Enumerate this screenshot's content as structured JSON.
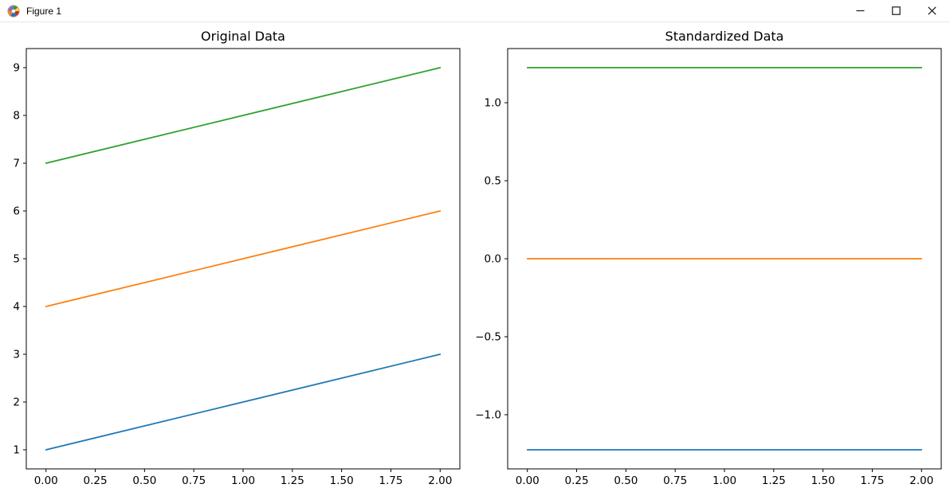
{
  "window": {
    "title": "Figure 1",
    "icon": "matplotlib-logo",
    "controls": [
      {
        "name": "minimize",
        "icon": "minimize-icon"
      },
      {
        "name": "maximize",
        "icon": "maximize-icon"
      },
      {
        "name": "close",
        "icon": "close-icon"
      }
    ]
  },
  "chart_data": [
    {
      "type": "line",
      "title": "Original Data",
      "x": [
        0,
        1,
        2
      ],
      "series": [
        {
          "name": "blue-line",
          "color": "#1f77b4",
          "values": [
            1,
            2,
            3
          ]
        },
        {
          "name": "orange-line",
          "color": "#ff7f0e",
          "values": [
            4,
            5,
            6
          ]
        },
        {
          "name": "green-line",
          "color": "#2ca02c",
          "values": [
            7,
            8,
            9
          ]
        }
      ],
      "xlim": [
        -0.1,
        2.1
      ],
      "ylim": [
        0.6,
        9.4
      ],
      "xticks": {
        "values": [
          0,
          0.25,
          0.5,
          0.75,
          1.0,
          1.25,
          1.5,
          1.75,
          2.0
        ],
        "labels": [
          "0.00",
          "0.25",
          "0.50",
          "0.75",
          "1.00",
          "1.25",
          "1.50",
          "1.75",
          "2.00"
        ]
      },
      "yticks": {
        "values": [
          1,
          2,
          3,
          4,
          5,
          6,
          7,
          8,
          9
        ],
        "labels": [
          "1",
          "2",
          "3",
          "4",
          "5",
          "6",
          "7",
          "8",
          "9"
        ]
      },
      "grid": false,
      "legend": null,
      "frame_color": "#000000",
      "background": "#ffffff"
    },
    {
      "type": "line",
      "title": "Standardized Data",
      "x": [
        0,
        1,
        2
      ],
      "series": [
        {
          "name": "blue-line",
          "color": "#1f77b4",
          "values": [
            -1.2247,
            -1.2247,
            -1.2247
          ]
        },
        {
          "name": "orange-line",
          "color": "#ff7f0e",
          "values": [
            0,
            0,
            0
          ]
        },
        {
          "name": "green-line",
          "color": "#2ca02c",
          "values": [
            1.2247,
            1.2247,
            1.2247
          ]
        }
      ],
      "xlim": [
        -0.1,
        2.1
      ],
      "ylim": [
        -1.3472,
        1.3472
      ],
      "xticks": {
        "values": [
          0,
          0.25,
          0.5,
          0.75,
          1.0,
          1.25,
          1.5,
          1.75,
          2.0
        ],
        "labels": [
          "0.00",
          "0.25",
          "0.50",
          "0.75",
          "1.00",
          "1.25",
          "1.50",
          "1.75",
          "2.00"
        ]
      },
      "yticks": {
        "values": [
          -1.0,
          -0.5,
          0.0,
          0.5,
          1.0
        ],
        "labels": [
          "−1.0",
          "−0.5",
          "0.0",
          "0.5",
          "1.0"
        ]
      },
      "grid": false,
      "legend": null,
      "frame_color": "#000000",
      "background": "#ffffff"
    }
  ]
}
